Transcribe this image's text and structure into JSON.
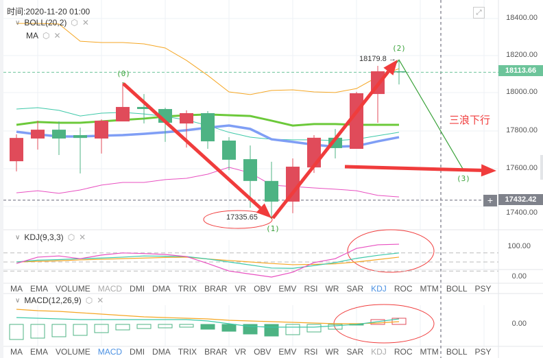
{
  "header": {
    "time_label": "时间:2020-11-20 01:00",
    "fullscreen_icon": "expand-icon"
  },
  "main_pane": {
    "indicators": [
      {
        "label": "BOLL(20,2)"
      },
      {
        "label": "MA"
      }
    ],
    "annotation_text": "三浪下行",
    "low_label": "17335.65",
    "high_label": "18179.8 →",
    "wave_labels": [
      "(0)",
      "(1)",
      "(2)",
      "(3)"
    ]
  },
  "price_axis": {
    "ticks": [
      "18400.00",
      "18200.00",
      "18000.00",
      "17800.00",
      "17600.00",
      "17400.00"
    ],
    "current_price": "18113.66",
    "crosshair_price": "17432.42",
    "crosshair_plus": "+"
  },
  "kdj_pane": {
    "label": "KDJ(9,3,3)",
    "ticks": [
      "100.00",
      "0.00"
    ]
  },
  "macd_pane": {
    "label": "MACD(12,26,9)",
    "ticks": [
      "0.00"
    ]
  },
  "indicator_tabs": [
    "MA",
    "EMA",
    "VOLUME",
    "MACD",
    "DMI",
    "DMA",
    "TRIX",
    "BRAR",
    "VR",
    "OBV",
    "EMV",
    "RSI",
    "WR",
    "SAR",
    "KDJ",
    "ROC",
    "MTM",
    "BOLL",
    "PSY"
  ],
  "tabs_row1": {
    "active": "KDJ",
    "muted": "MACD"
  },
  "tabs_row2": {
    "active": "MACD",
    "muted": "KDJ"
  },
  "colors": {
    "up": "#e04b5a",
    "down": "#4db383",
    "boll_upper": "#f5a623",
    "boll_mid": "#3cc8a8",
    "boll_lower": "#e84fc0",
    "ma_green": "#6cc93a",
    "ma_blue": "#7f9ef5",
    "current_price_tag": "#6cc49a",
    "crosshair_tag": "#7f828b",
    "annotation": "#f03c3c",
    "wave": "#3aa23a"
  },
  "chart_data": {
    "type": "candlestick",
    "ylim": [
      17300,
      18450
    ],
    "candles": [
      {
        "o": 17640,
        "h": 17783,
        "l": 17586,
        "c": 17764
      },
      {
        "o": 17761,
        "h": 17856,
        "l": 17702,
        "c": 17808
      },
      {
        "o": 17808,
        "h": 17852,
        "l": 17673,
        "c": 17761
      },
      {
        "o": 17779,
        "h": 17819,
        "l": 17575,
        "c": 17764
      },
      {
        "o": 17761,
        "h": 17863,
        "l": 17681,
        "c": 17856
      },
      {
        "o": 17852,
        "h": 18060,
        "l": 17852,
        "c": 17929
      },
      {
        "o": 17929,
        "h": 17998,
        "l": 17841,
        "c": 17918
      },
      {
        "o": 17918,
        "h": 17925,
        "l": 17743,
        "c": 17845
      },
      {
        "o": 17841,
        "h": 17911,
        "l": 17713,
        "c": 17896
      },
      {
        "o": 17896,
        "h": 17907,
        "l": 17706,
        "c": 17746
      },
      {
        "o": 17750,
        "h": 17768,
        "l": 17593,
        "c": 17648
      },
      {
        "o": 17651,
        "h": 17724,
        "l": 17392,
        "c": 17535
      },
      {
        "o": 17535,
        "h": 17637,
        "l": 17335.65,
        "c": 17425
      },
      {
        "o": 17425,
        "h": 17655,
        "l": 17363,
        "c": 17611
      },
      {
        "o": 17607,
        "h": 17779,
        "l": 17578,
        "c": 17765
      },
      {
        "o": 17765,
        "h": 17812,
        "l": 17655,
        "c": 17710
      },
      {
        "o": 17706,
        "h": 18009,
        "l": 17706,
        "c": 18002
      },
      {
        "o": 17998,
        "h": 18148,
        "l": 17845,
        "c": 18119
      },
      {
        "o": 18119,
        "h": 18179.8,
        "l": 18049,
        "c": 18113.66
      }
    ],
    "boll_upper": [
      18374,
      18374,
      18371,
      18279,
      18272,
      18272,
      18265,
      18243,
      18177,
      18097,
      18009,
      17995,
      18017,
      18020,
      18009,
      18006,
      18027,
      18090,
      18133
    ],
    "boll_mid": [
      17918,
      17925,
      17911,
      17881,
      17896,
      17900,
      17892,
      17878,
      17860,
      17830,
      17794,
      17768,
      17757,
      17754,
      17754,
      17750,
      17757,
      17776,
      17794
    ],
    "boll_lower": [
      17472,
      17483,
      17469,
      17487,
      17513,
      17527,
      17527,
      17542,
      17549,
      17571,
      17608,
      17578,
      17513,
      17505,
      17498,
      17491,
      17483,
      17458,
      17450
    ],
    "ma_green": [
      17834,
      17849,
      17845,
      17845,
      17852,
      17860,
      17867,
      17878,
      17885,
      17889,
      17885,
      17881,
      17856,
      17830,
      17838,
      17838,
      17834,
      17834,
      17834
    ],
    "ma_blue": [
      17797,
      17783,
      17772,
      17772,
      17776,
      17779,
      17786,
      17794,
      17805,
      17819,
      17830,
      17812,
      17757,
      17743,
      17728,
      17717,
      17721,
      17746,
      17768
    ],
    "price_lines": {
      "current": 18113.66,
      "crosshair": 17432.42
    },
    "wave_points": [
      {
        "label": "(0)",
        "index": 5,
        "price": 18060
      },
      {
        "label": "(1)",
        "index": 12,
        "price": 17335.65
      },
      {
        "label": "(2)",
        "index": 18,
        "price": 18179.8
      },
      {
        "label": "(3)",
        "index": 21,
        "price": 17600
      }
    ],
    "kdj": {
      "ylim": [
        0,
        100
      ],
      "levels": [
        80,
        50,
        20
      ],
      "k": [
        50,
        56,
        58,
        61,
        63,
        66,
        70,
        69,
        68,
        60,
        50,
        40,
        30,
        29,
        38,
        48,
        62,
        72,
        80
      ],
      "d": [
        50,
        52,
        54,
        57,
        59,
        61,
        63,
        65,
        66,
        60,
        55,
        50,
        45,
        41,
        42,
        44,
        50,
        58,
        66
      ],
      "j": [
        45,
        66,
        70,
        61,
        73,
        80,
        78,
        75,
        68,
        45,
        20,
        10,
        0,
        16,
        48,
        61,
        95,
        107,
        109
      ]
    },
    "macd": {
      "dif": [
        10,
        9,
        8,
        7,
        7,
        7,
        7,
        7,
        7,
        5,
        1,
        -3,
        -4,
        -4,
        -4,
        -2,
        0,
        4,
        8
      ],
      "dea": [
        22,
        20,
        19,
        17,
        15,
        13,
        11,
        10,
        9,
        8,
        6,
        5,
        4,
        3,
        2,
        1,
        1,
        2,
        4
      ],
      "hist": [
        -22,
        -20,
        -18,
        -16,
        -12,
        -8,
        -6,
        -5,
        -4,
        -7,
        -10,
        -14,
        -17,
        -15,
        -11,
        -7,
        -1,
        7,
        9
      ]
    }
  }
}
